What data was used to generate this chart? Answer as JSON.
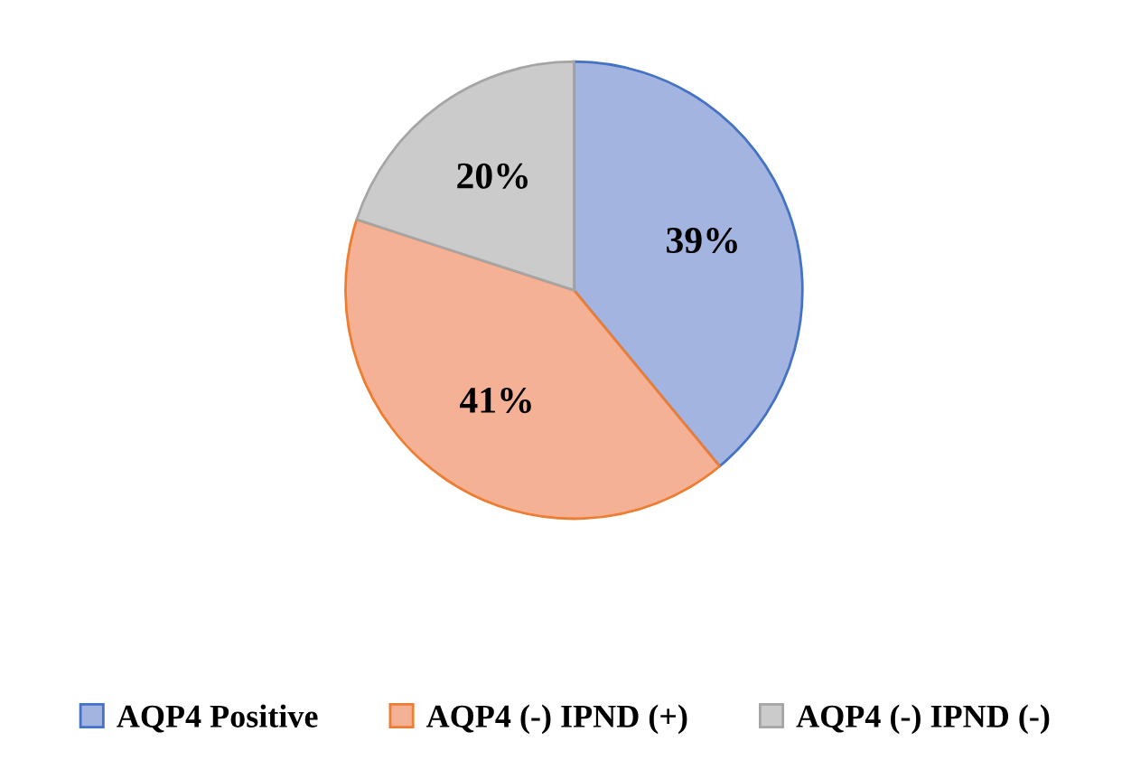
{
  "chart_data": {
    "type": "pie",
    "categories": [
      "AQP4 Positive",
      "AQP4 (-) IPND (+)",
      "AQP4 (-) IPND (-)"
    ],
    "values": [
      39,
      41,
      20
    ],
    "colors": [
      "#a3b4e0",
      "#f5b196",
      "#cbcbcb"
    ],
    "value_labels": [
      "39%",
      "41%",
      "20%"
    ],
    "legend": "bottom"
  }
}
